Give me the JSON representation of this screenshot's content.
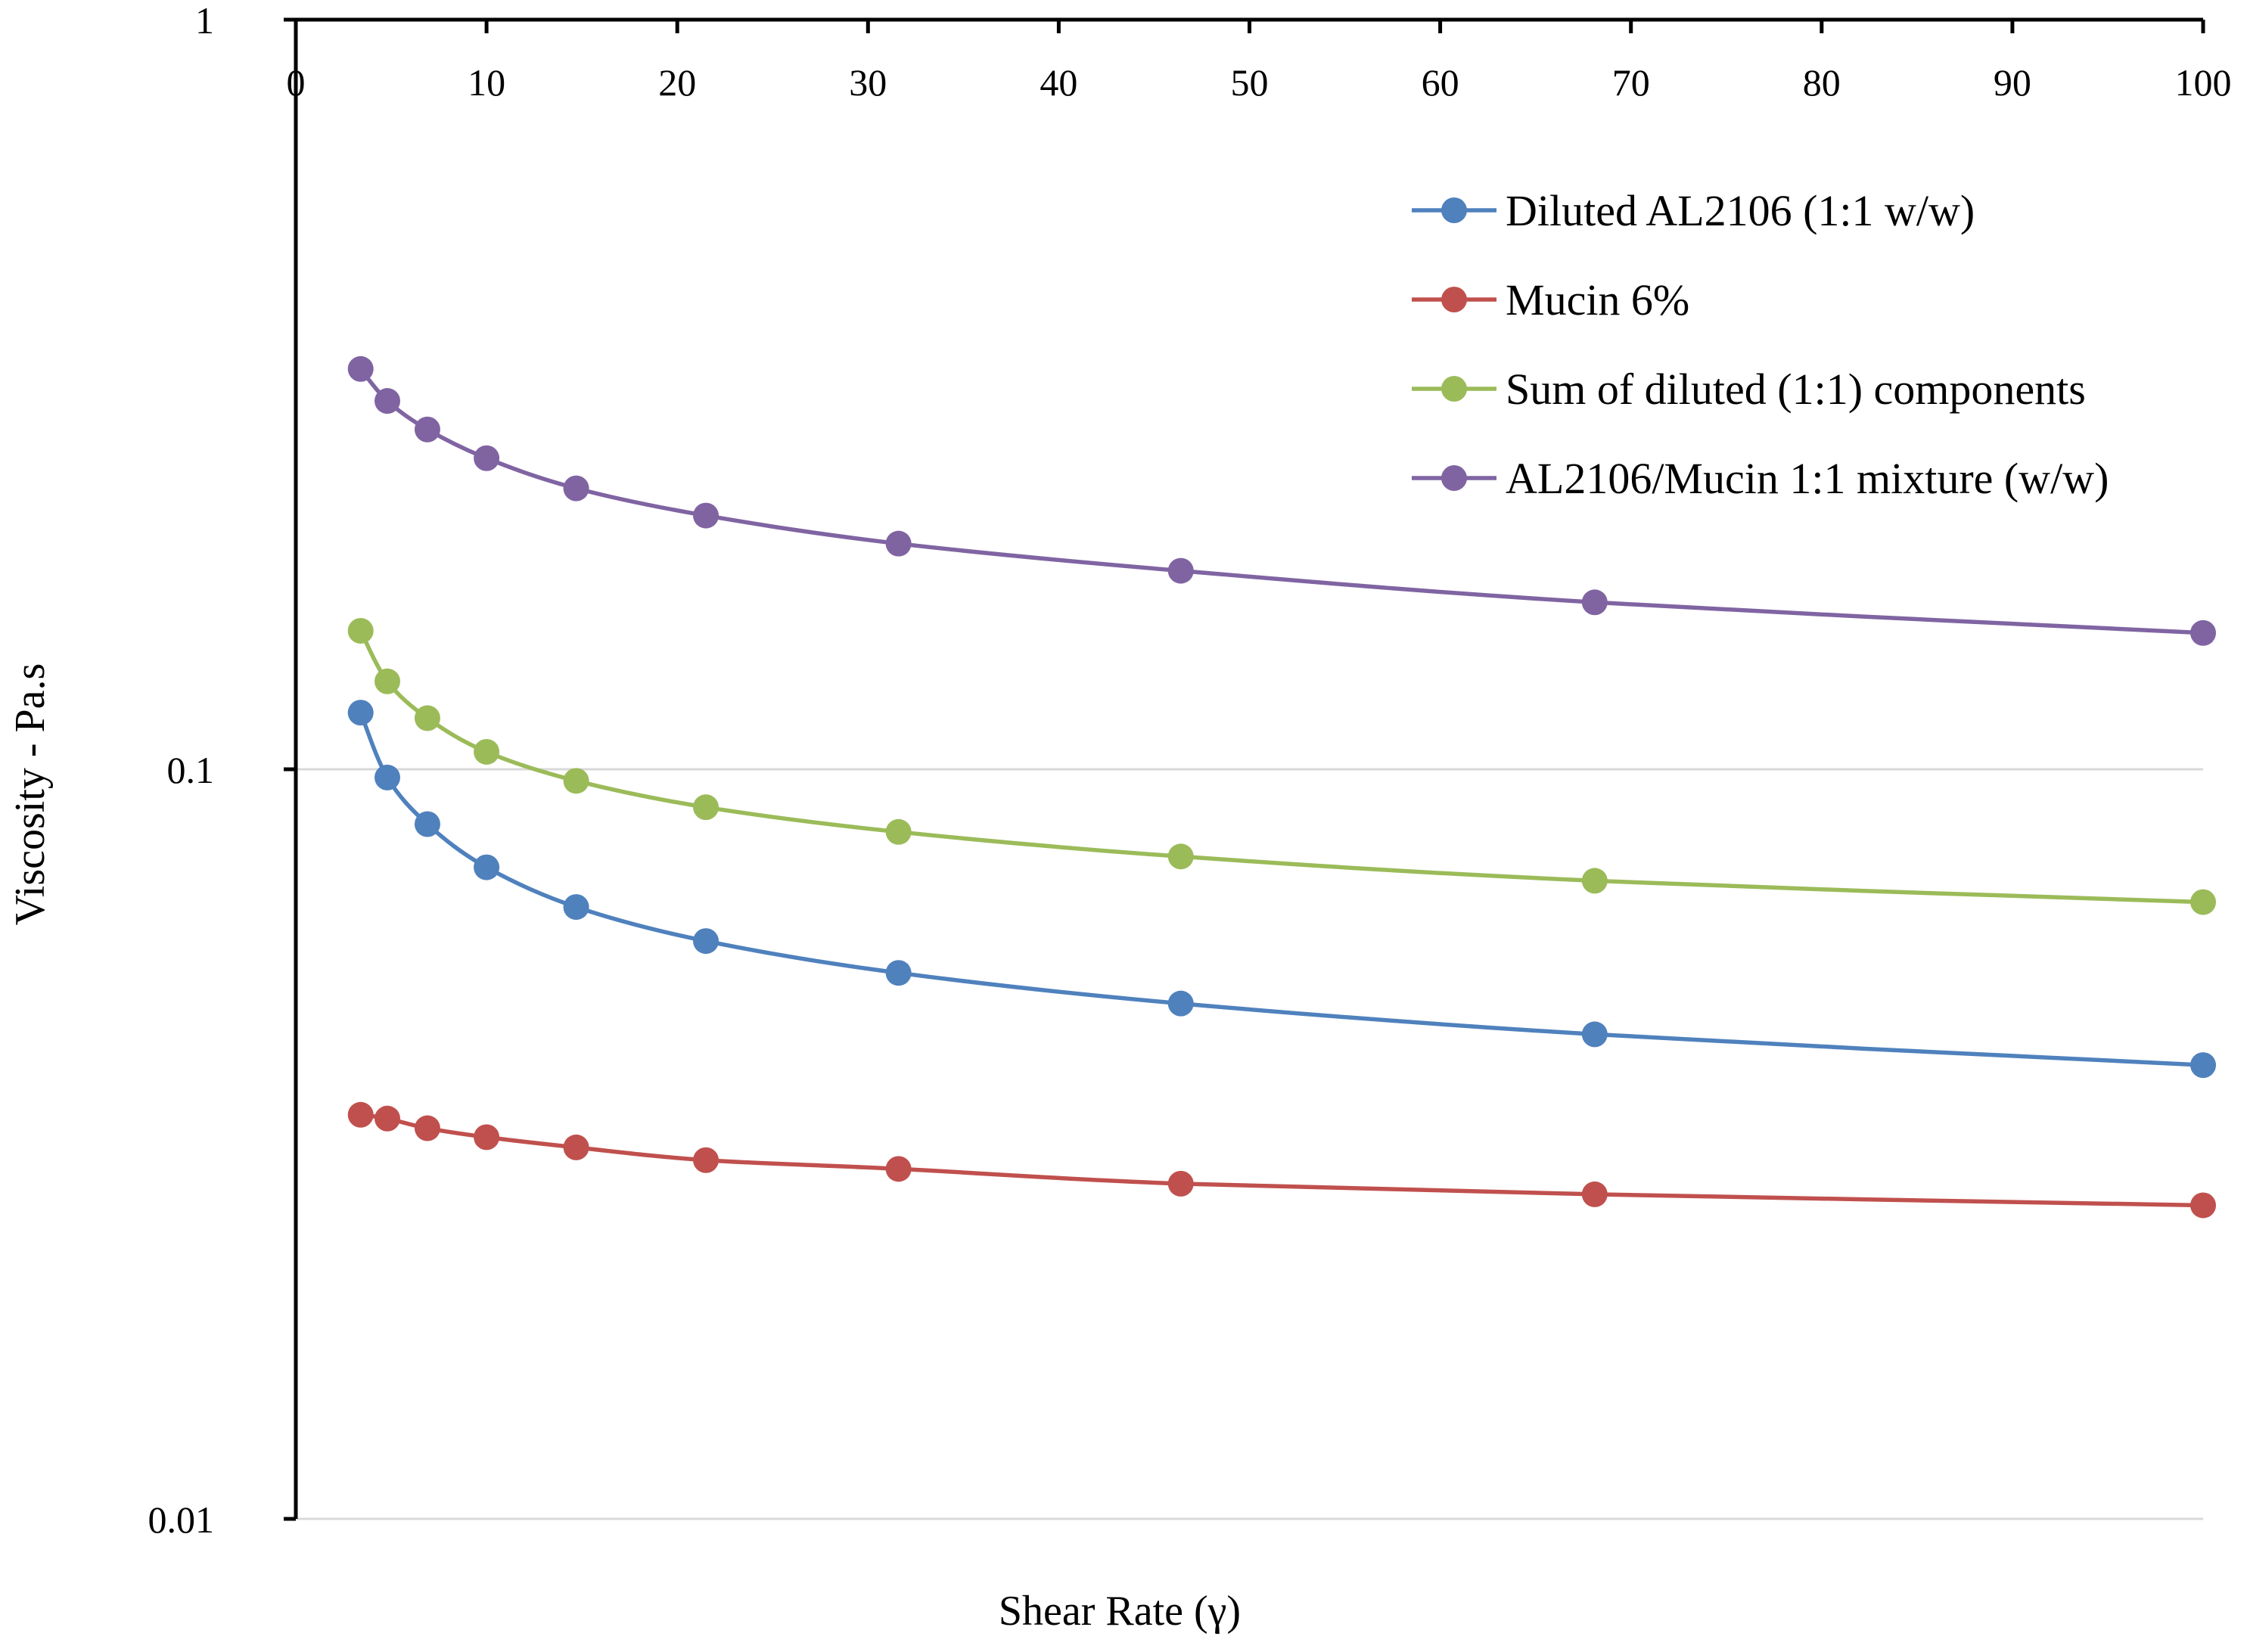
{
  "chart_data": {
    "type": "line",
    "title": "",
    "xlabel": "Shear Rate (γ)",
    "ylabel": "Viscosity - Pa.s",
    "x_axis_position": "top",
    "xlim": [
      0,
      100
    ],
    "ylim": [
      0.01,
      1
    ],
    "y_scale": "log",
    "x_ticks": [
      0,
      10,
      20,
      30,
      40,
      50,
      60,
      70,
      80,
      90,
      100
    ],
    "x_tick_labels": [
      "0",
      "10",
      "20",
      "30",
      "40",
      "50",
      "60",
      "70",
      "80",
      "90",
      "100"
    ],
    "y_ticks": [
      0.01,
      0.1,
      1
    ],
    "y_tick_labels": [
      "0.01",
      "0.1",
      "1"
    ],
    "grid": "horizontal major gridlines",
    "legend_position": "top-right",
    "x": [
      3.4,
      4.8,
      6.9,
      10,
      14.7,
      21.5,
      31.6,
      46.4,
      68.1,
      100
    ],
    "series": [
      {
        "name": "Diluted AL2106 (1:1 w/w)",
        "color": "#4f81bd",
        "values": [
          0.119,
          0.0975,
          0.0845,
          0.074,
          0.0655,
          0.059,
          0.0535,
          0.0487,
          0.0443,
          0.0403
        ]
      },
      {
        "name": "Mucin 6%",
        "color": "#c0504d",
        "values": [
          0.0346,
          0.0342,
          0.0332,
          0.0323,
          0.0313,
          0.0301,
          0.0293,
          0.028,
          0.0271,
          0.0262
        ]
      },
      {
        "name": "Sum of diluted (1:1) components",
        "color": "#9bbb59",
        "values": [
          0.153,
          0.131,
          0.117,
          0.1055,
          0.0965,
          0.089,
          0.0825,
          0.0765,
          0.071,
          0.0665
        ]
      },
      {
        "name": "AL2106/Mucin 1:1 mixture (w/w)",
        "color": "#8064a2",
        "values": [
          0.342,
          0.31,
          0.284,
          0.26,
          0.237,
          0.218,
          0.2,
          0.184,
          0.167,
          0.152
        ]
      }
    ]
  }
}
